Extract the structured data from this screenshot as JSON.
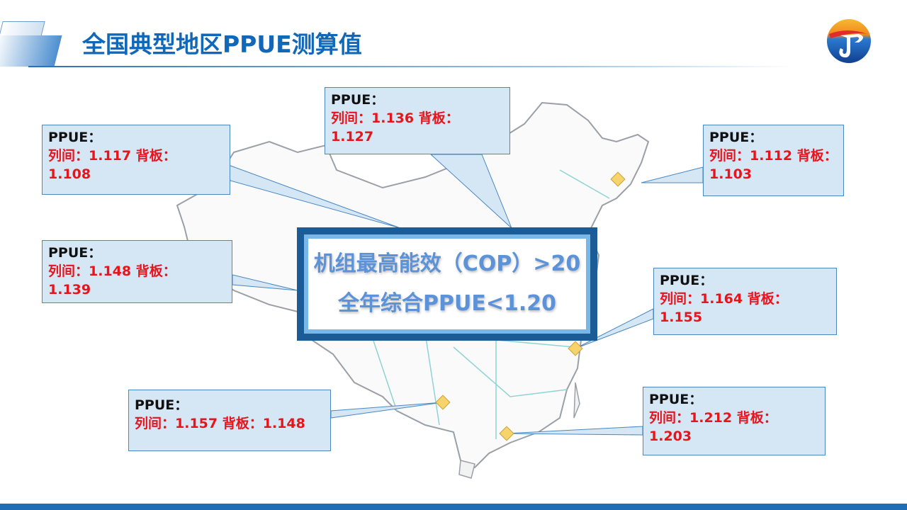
{
  "header": {
    "title": "全国典型地区PPUE测算值"
  },
  "logo": {
    "name": "company-logo",
    "colors": [
      "#f5a623",
      "#1656a8",
      "#e32b2b"
    ]
  },
  "central": {
    "line1": "机组最高能效（COP）>20",
    "line2": "全年综合PPUE<1.20"
  },
  "callouts": [
    {
      "label": "PPUE：",
      "value": "列间：1.117  背板：1.108"
    },
    {
      "label": "PPUE：",
      "value": "列间：1.136  背板：1.127"
    },
    {
      "label": "PPUE：",
      "value": "列间：1.112  背板：1.103"
    },
    {
      "label": "PPUE：",
      "value": "列间：1.148  背板：1.139"
    },
    {
      "label": "PPUE：",
      "value": "列间：1.164  背板：1.155"
    },
    {
      "label": "PPUE：",
      "value": "列间：1.157 背板：1.148"
    },
    {
      "label": "PPUE：",
      "value": "列间：1.212  背板：1.203"
    }
  ],
  "colors": {
    "title": "#1168b8",
    "callout_fill": "#d5e6f5",
    "value_text": "#e8141c",
    "marker": "#f7d36b"
  }
}
